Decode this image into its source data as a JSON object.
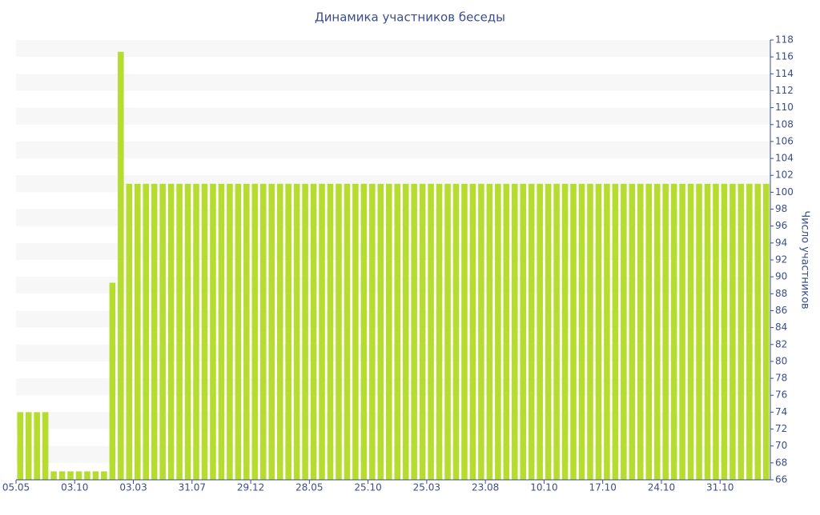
{
  "chart_data": {
    "type": "bar",
    "title": "Динамика участников беседы",
    "y_label": "Число участников",
    "color": "#b5dc2f",
    "y_axis_side": "right",
    "grid": "bands",
    "categories": [
      "05.05",
      null,
      null,
      null,
      null,
      null,
      null,
      "03.10",
      null,
      null,
      null,
      null,
      null,
      null,
      "03.03",
      null,
      null,
      null,
      null,
      null,
      null,
      "31.07",
      null,
      null,
      null,
      null,
      null,
      null,
      "29.12",
      null,
      null,
      null,
      null,
      null,
      null,
      "28.05",
      null,
      null,
      null,
      null,
      null,
      null,
      "25.10",
      null,
      null,
      null,
      null,
      null,
      null,
      "25.03",
      null,
      null,
      null,
      null,
      null,
      null,
      "23.08",
      null,
      null,
      null,
      null,
      null,
      null,
      "10.10",
      null,
      null,
      null,
      null,
      null,
      null,
      "17.10",
      null,
      null,
      null,
      null,
      null,
      null,
      "24.10",
      null,
      null,
      null,
      null,
      null,
      null,
      "31.10",
      null,
      null,
      null,
      null,
      null
    ],
    "values": [
      74,
      74,
      74,
      74,
      67,
      67,
      67,
      67,
      67,
      67,
      67,
      89.3,
      116.6,
      101,
      101,
      101,
      101,
      101,
      101,
      101,
      101,
      101,
      101,
      101,
      101,
      101,
      101,
      101,
      101,
      101,
      101,
      101,
      101,
      101,
      101,
      101,
      101,
      101,
      101,
      101,
      101,
      101,
      101,
      101,
      101,
      101,
      101,
      101,
      101,
      101,
      101,
      101,
      101,
      101,
      101,
      101,
      101,
      101,
      101,
      101,
      101,
      101,
      101,
      101,
      101,
      101,
      101,
      101,
      101,
      101,
      101,
      101,
      101,
      101,
      101,
      101,
      101,
      101,
      101,
      101,
      101,
      101,
      101,
      101,
      101,
      101,
      101,
      101,
      101,
      101
    ],
    "ylim": [
      66,
      118
    ],
    "yticks": [
      66,
      68,
      70,
      72,
      74,
      76,
      78,
      80,
      82,
      84,
      86,
      88,
      90,
      92,
      94,
      96,
      98,
      100,
      102,
      104,
      106,
      108,
      110,
      112,
      114,
      116,
      118
    ]
  }
}
